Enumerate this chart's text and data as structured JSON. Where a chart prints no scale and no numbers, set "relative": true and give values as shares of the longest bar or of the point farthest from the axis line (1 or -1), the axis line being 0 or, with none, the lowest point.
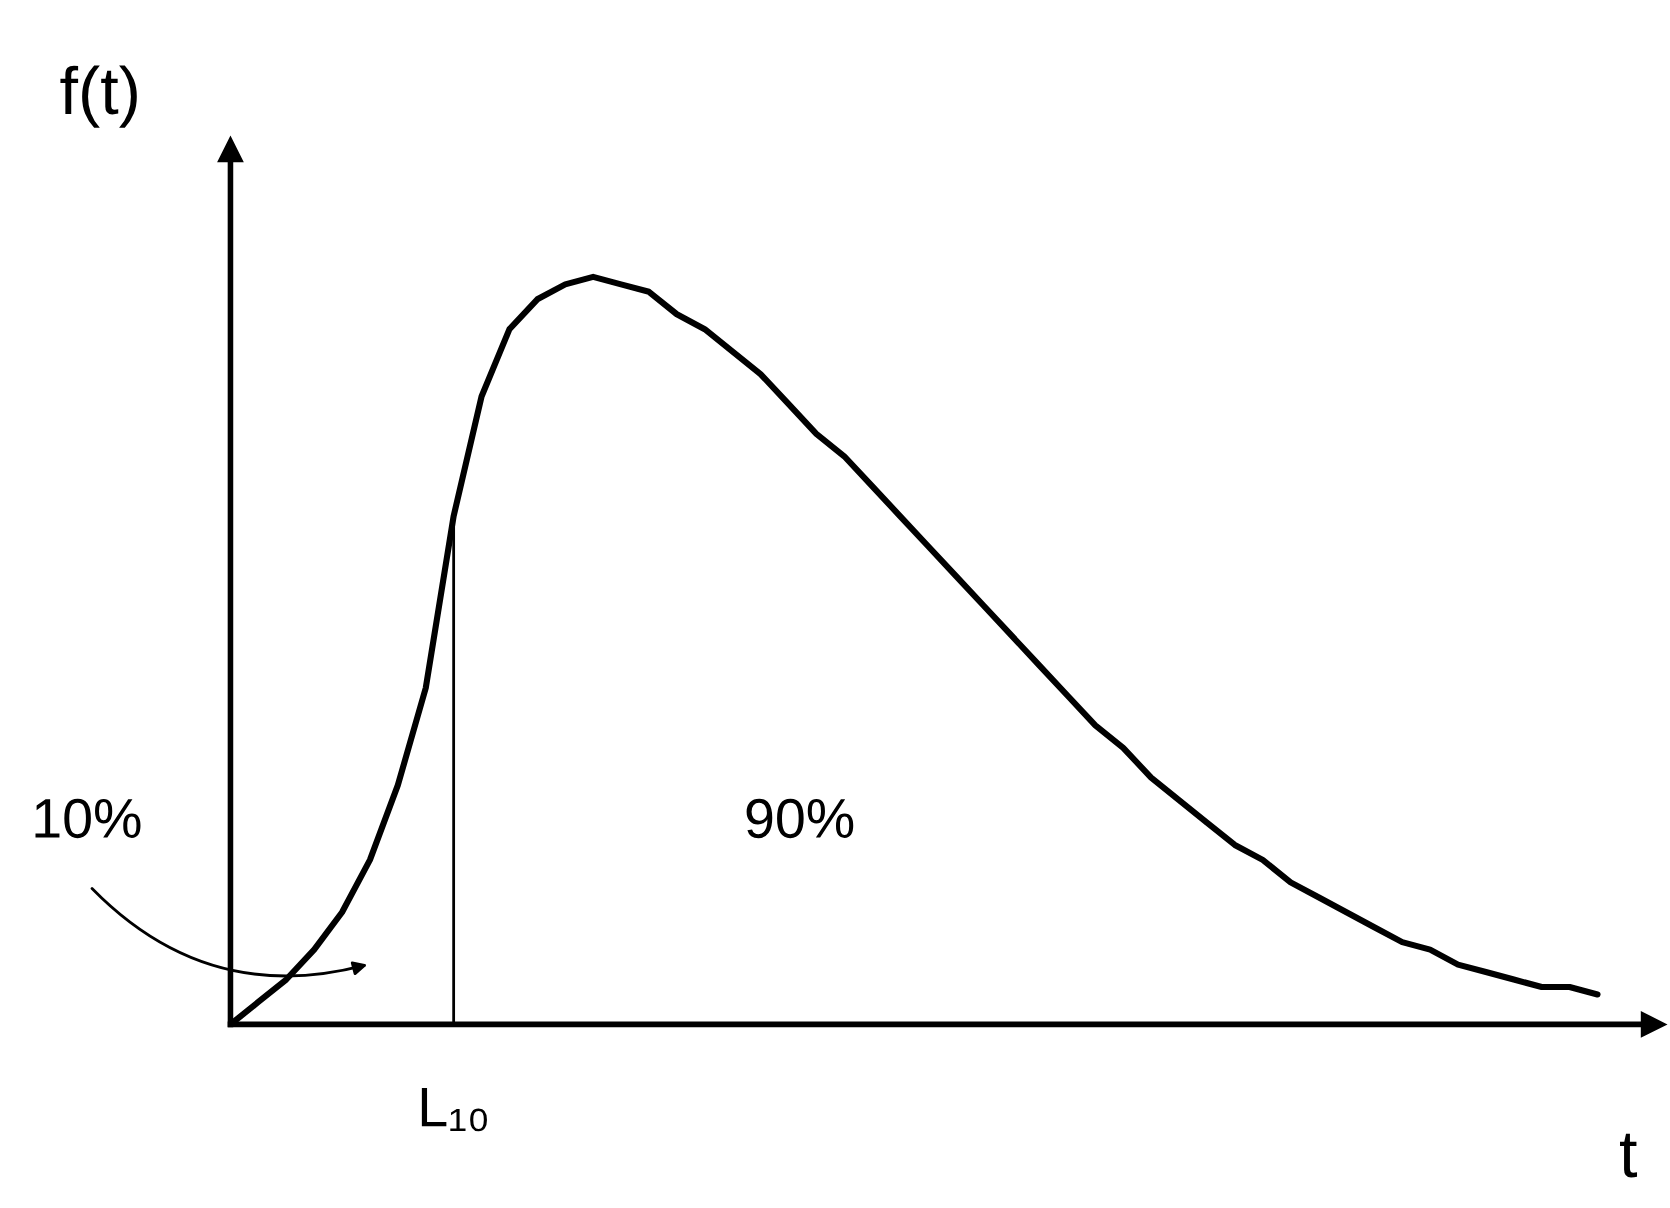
{
  "chart_data": {
    "type": "line",
    "relative": true,
    "xlabel": "t",
    "ylabel": "f(t)",
    "categories": [
      null,
      null,
      null,
      null,
      null,
      null,
      null,
      null,
      null,
      null,
      null,
      null,
      null,
      null,
      null,
      null,
      null,
      null,
      null,
      null,
      null,
      null,
      null,
      null,
      null,
      null,
      null,
      null,
      null,
      null,
      null,
      null,
      null,
      null,
      null,
      null,
      null,
      null,
      null,
      null,
      null,
      null,
      null,
      null,
      null,
      null,
      null,
      null,
      null,
      null
    ],
    "series": [
      {
        "color": "#000000",
        "values": [
          0,
          0.03,
          0.06,
          0.1,
          0.15,
          0.22,
          0.32,
          0.45,
          0.68,
          0.84,
          0.93,
          0.97,
          0.99,
          1,
          0.99,
          0.98,
          0.95,
          0.93,
          0.9,
          0.87,
          0.83,
          0.79,
          0.76,
          0.72,
          0.68,
          0.64,
          0.6,
          0.56,
          0.52,
          0.48,
          0.44,
          0.4,
          0.37,
          0.33,
          0.3,
          0.27,
          0.24,
          0.22,
          0.19,
          0.17,
          0.15,
          0.13,
          0.11,
          0.1,
          0.08,
          0.07,
          0.06,
          0.05,
          0.05,
          0.04
        ]
      }
    ],
    "annotations": [
      "10%",
      "90%",
      "L₁₀"
    ],
    "legend": false,
    "marker": "none",
    "line_style": "solid"
  }
}
